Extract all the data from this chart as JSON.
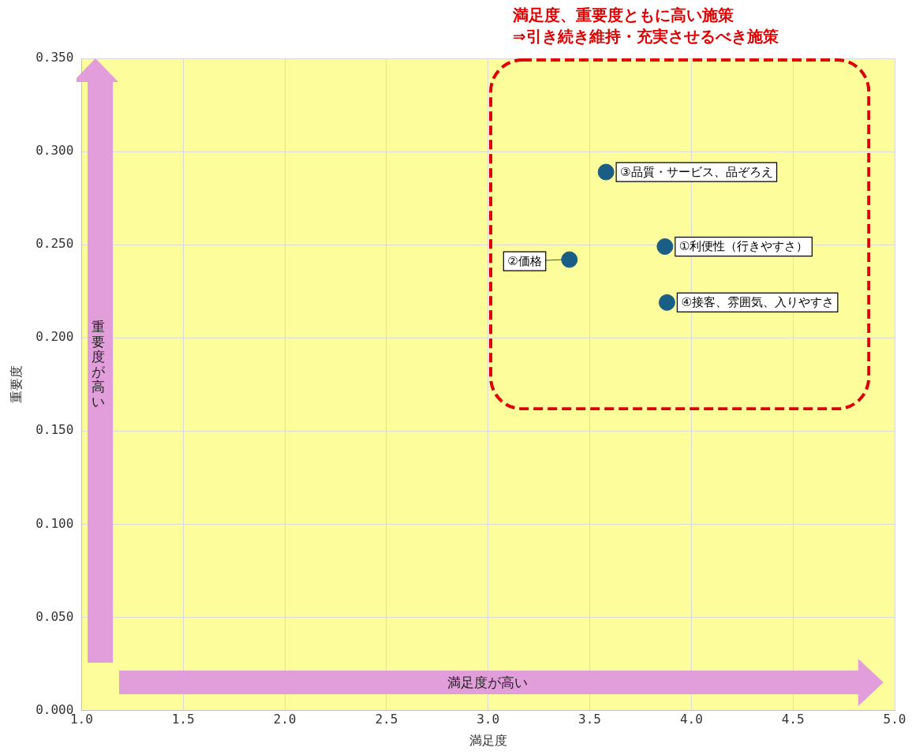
{
  "chart_data": {
    "type": "scatter",
    "xlabel": "満足度",
    "ylabel": "重要度",
    "xlim": [
      1,
      5
    ],
    "ylim": [
      0,
      0.35
    ],
    "xticks": [
      {
        "value": 1,
        "label": "1.0"
      },
      {
        "value": 1.5,
        "label": "1.5"
      },
      {
        "value": 2,
        "label": "2.0"
      },
      {
        "value": 2.5,
        "label": "2.5"
      },
      {
        "value": 3,
        "label": "3.0"
      },
      {
        "value": 3.5,
        "label": "3.5"
      },
      {
        "value": 4,
        "label": "4.0"
      },
      {
        "value": 4.5,
        "label": "4.5"
      },
      {
        "value": 5,
        "label": "5.0"
      }
    ],
    "yticks": [
      {
        "value": 0,
        "label": "0.000"
      },
      {
        "value": 0.05,
        "label": "0.050"
      },
      {
        "value": 0.1,
        "label": "0.100"
      },
      {
        "value": 0.15,
        "label": "0.150"
      },
      {
        "value": 0.2,
        "label": "0.200"
      },
      {
        "value": 0.25,
        "label": "0.250"
      },
      {
        "value": 0.3,
        "label": "0.300"
      },
      {
        "value": 0.35,
        "label": "0.350"
      }
    ],
    "x": [
      3.87,
      3.4,
      3.58,
      3.88
    ],
    "series": [
      {
        "color": "#1b5e85",
        "values": [
          0.249,
          0.242,
          0.289,
          0.219
        ]
      }
    ],
    "annotations": [
      {
        "text": "①利便性（行きやすさ）",
        "x": 3.87,
        "y": 0.249
      },
      {
        "text": "②価格",
        "x": 3.4,
        "y": 0.242
      },
      {
        "text": "③品質・サービス、品ぞろえ",
        "x": 3.58,
        "y": 0.289
      },
      {
        "text": "④接客、雰囲気、入りやすさ",
        "x": 3.88,
        "y": 0.219
      },
      "満足度、重要度ともに高い施策\n⇒引き続き維持・充実させるべき施策",
      "重要度が高い",
      "満足度が高い"
    ],
    "grid": true,
    "legend": false,
    "marker": "circle"
  }
}
